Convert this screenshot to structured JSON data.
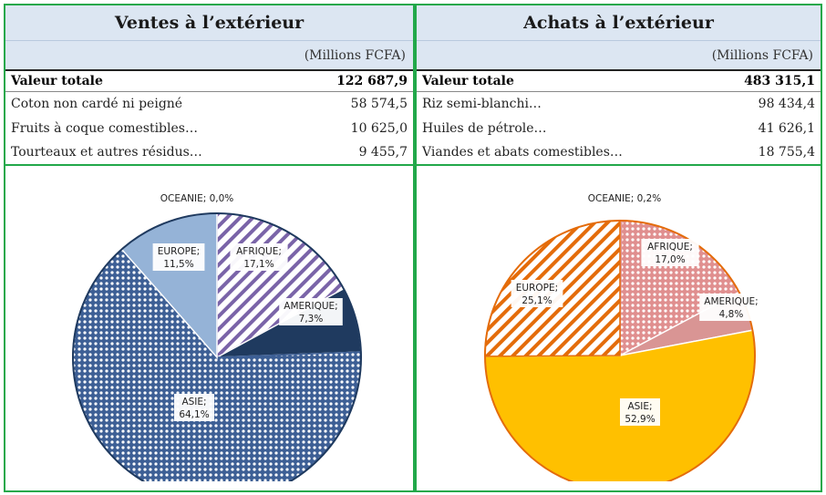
{
  "panels": [
    {
      "title": "Ventes à l’extérieur",
      "unit": "(Millions FCFA)",
      "total_label": "Valeur totale",
      "total_value": "122 687,9",
      "rows": [
        {
          "label": "Coton non cardé ni peigné",
          "value": "58 574,5"
        },
        {
          "label": "Fruits à coque comestibles…",
          "value": "10 625,0"
        },
        {
          "label": "Tourteaux et autres résidus…",
          "value": "9 455,7"
        }
      ]
    },
    {
      "title": "Achats à l’extérieur",
      "unit": "(Millions FCFA)",
      "total_label": "Valeur totale",
      "total_value": "483 315,1",
      "rows": [
        {
          "label": "Riz semi-blanchi…",
          "value": "98 434,4"
        },
        {
          "label": "Huiles de pétrole…",
          "value": "41 626,1"
        },
        {
          "label": "Viandes et abats comestibles…",
          "value": "18 755,4"
        }
      ]
    }
  ],
  "chart_data": [
    {
      "type": "pie",
      "slices": [
        {
          "label": "OCEANIE",
          "pct_text": "0,0%",
          "value": 0.0,
          "color": "#7f7f7f",
          "pattern": "solid"
        },
        {
          "label": "AFRIQUE",
          "pct_text": "17,1%",
          "value": 17.1,
          "color": "#7a64a8",
          "pattern": "stripes"
        },
        {
          "label": "AMERIQUE",
          "pct_text": "7,3%",
          "value": 7.3,
          "color": "#1f3a5f",
          "pattern": "solid"
        },
        {
          "label": "ASIE",
          "pct_text": "64,1%",
          "value": 64.1,
          "color": "#3d5f95",
          "pattern": "dots"
        },
        {
          "label": "EUROPE",
          "pct_text": "11,5%",
          "value": 11.5,
          "color": "#95b3d7",
          "pattern": "solid"
        }
      ]
    },
    {
      "type": "pie",
      "slices": [
        {
          "label": "OCEANIE",
          "pct_text": "0,2%",
          "value": 0.2,
          "color": "#e46c0a",
          "pattern": "solid"
        },
        {
          "label": "AFRIQUE",
          "pct_text": "17,0%",
          "value": 17.0,
          "color": "#e08f8f",
          "pattern": "dots"
        },
        {
          "label": "AMERIQUE",
          "pct_text": "4,8%",
          "value": 4.8,
          "color": "#d99594",
          "pattern": "solid"
        },
        {
          "label": "ASIE",
          "pct_text": "52,9%",
          "value": 52.9,
          "color": "#ffc000",
          "pattern": "solid"
        },
        {
          "label": "EUROPE",
          "pct_text": "25,1%",
          "value": 25.1,
          "color": "#e46c0a",
          "pattern": "stripes"
        }
      ]
    }
  ]
}
